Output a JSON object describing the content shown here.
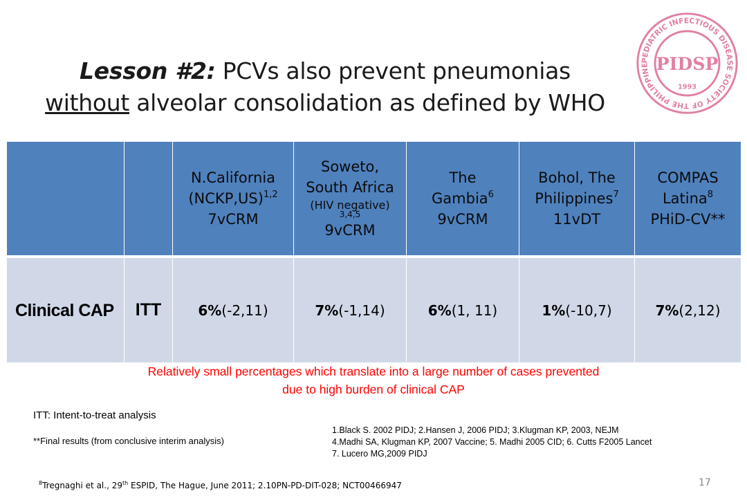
{
  "title": {
    "lesson": "Lesson #2:",
    "line1_rest": " PCVs also prevent pneumonias",
    "underlined": "without",
    "line2_rest": " alveolar consolidation as defined by WHO"
  },
  "logo": {
    "ring_text": "PEDIATRIC INFECTIOUS DISEASE SOCIETY OF THE PHILIPPINES",
    "center_text": "PIDSP",
    "year": "1993",
    "color": "#e07fa6"
  },
  "table": {
    "headers": [
      {
        "l1": "N.California",
        "l2": "(NCKP,US)",
        "sup": "1,2",
        "l3": "7vCRM"
      },
      {
        "l1": "Soweto,",
        "l2": "South Africa",
        "small": "(HIV negative)",
        "supline": "3,4,5",
        "l3": "9vCRM"
      },
      {
        "l1": "The",
        "l2": "Gambia",
        "sup": "6",
        "l3": "9vCRM"
      },
      {
        "l1": "Bohol, The",
        "l2": "Philippines",
        "sup": "7",
        "l3": "11vDT"
      },
      {
        "l1": "COMPAS",
        "l2": "Latina",
        "sup": "8",
        "l3": "PHiD-CV**"
      }
    ],
    "row": {
      "label": "Clinical CAP",
      "analysis": "ITT",
      "cells": [
        {
          "pct": "6%",
          "ci": " (-2,11)"
        },
        {
          "pct": "7%",
          "ci": " (-1,14)"
        },
        {
          "pct": "6%",
          "ci": " (1, 11)"
        },
        {
          "pct": "1%",
          "ci": " (-10,7)"
        },
        {
          "pct": "7%",
          "ci": " (2,12)"
        }
      ]
    },
    "colors": {
      "header_bg": "#4f81bd",
      "body_bg": "#d0d8e8"
    }
  },
  "note": {
    "line1": "Relatively small percentages which translate into a large number of cases prevented",
    "line2": "due to high burden of clinical CAP",
    "color": "#ff0000"
  },
  "itt_definition": "ITT: Intent-to-treat analysis",
  "final_note": "**Final results (from conclusive interim analysis)",
  "references": [
    "1.Black S. 2002 PIDJ; 2.Hansen J, 2006 PIDJ; 3.Klugman KP, 2003, NEJM",
    "4.Madhi SA, Klugman KP, 2007 Vaccine; 5. Madhi 2005 CID; 6. Cutts F2005 Lancet",
    "7. Lucero MG,2009 PIDJ"
  ],
  "footnote": {
    "sup": "8",
    "text": "Tregnaghi et al., 29",
    "sup2": "th",
    "rest": " ESPID, The Hague, June 2011; 2.10PN-PD-DIT-028; NCT00466947"
  },
  "page_number": "17"
}
